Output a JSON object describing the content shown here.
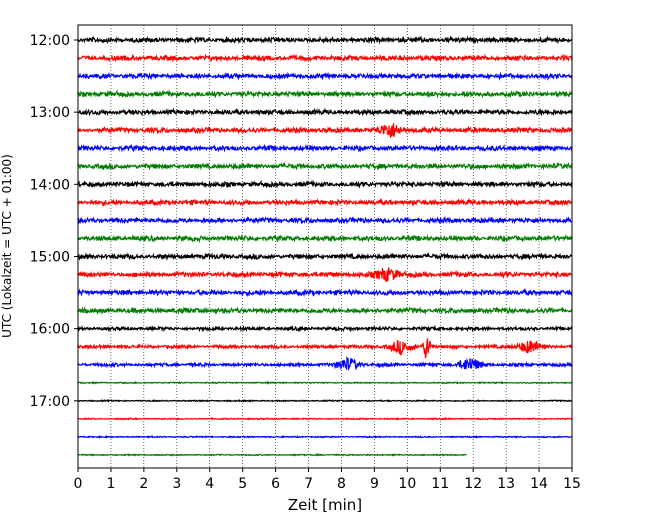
{
  "chart_data": {
    "type": "line",
    "title": "",
    "xlabel": "Zeit  [min]",
    "ylabel": "UTC (Lokalzeit = UTC + 01:00)",
    "xlim": [
      0,
      15
    ],
    "x_ticks": [
      "0",
      "1",
      "2",
      "3",
      "4",
      "5",
      "6",
      "7",
      "8",
      "9",
      "10",
      "11",
      "12",
      "13",
      "14",
      "15"
    ],
    "y_tick_labels": [
      "12:00",
      "13:00",
      "14:00",
      "15:00",
      "16:00",
      "17:00"
    ],
    "grid": "vertical dotted",
    "trace_interval_min": 15,
    "trace_colors": [
      "#000000",
      "#ff0000",
      "#0000ff",
      "#008000"
    ],
    "series": [
      {
        "start": "12:00",
        "end_min": 15,
        "color": "#000000"
      },
      {
        "start": "12:15",
        "end_min": 15,
        "color": "#ff0000"
      },
      {
        "start": "12:30",
        "end_min": 15,
        "color": "#0000ff"
      },
      {
        "start": "12:45",
        "end_min": 15,
        "color": "#008000"
      },
      {
        "start": "13:00",
        "end_min": 15,
        "color": "#000000"
      },
      {
        "start": "13:15",
        "end_min": 15,
        "color": "#ff0000"
      },
      {
        "start": "13:30",
        "end_min": 15,
        "color": "#0000ff"
      },
      {
        "start": "13:45",
        "end_min": 15,
        "color": "#008000"
      },
      {
        "start": "14:00",
        "end_min": 15,
        "color": "#000000"
      },
      {
        "start": "14:15",
        "end_min": 15,
        "color": "#ff0000"
      },
      {
        "start": "14:30",
        "end_min": 15,
        "color": "#0000ff"
      },
      {
        "start": "14:45",
        "end_min": 15,
        "color": "#008000"
      },
      {
        "start": "15:00",
        "end_min": 15,
        "color": "#000000"
      },
      {
        "start": "15:15",
        "end_min": 15,
        "color": "#ff0000"
      },
      {
        "start": "15:30",
        "end_min": 15,
        "color": "#0000ff"
      },
      {
        "start": "15:45",
        "end_min": 15,
        "color": "#008000"
      },
      {
        "start": "16:00",
        "end_min": 15,
        "color": "#000000"
      },
      {
        "start": "16:15",
        "end_min": 15,
        "color": "#ff0000"
      },
      {
        "start": "16:30",
        "end_min": 15,
        "color": "#0000ff"
      },
      {
        "start": "16:45",
        "end_min": 15,
        "color": "#008000"
      },
      {
        "start": "17:00",
        "end_min": 15,
        "color": "#000000"
      },
      {
        "start": "17:15",
        "end_min": 15,
        "color": "#ff0000"
      },
      {
        "start": "17:30",
        "end_min": 15,
        "color": "#0000ff"
      },
      {
        "start": "17:45",
        "end_min": 11.8,
        "color": "#008000"
      }
    ],
    "events": [
      {
        "series_index": 17,
        "x_min": 10.6,
        "amplitude": "large spike"
      },
      {
        "series_index": 17,
        "x_min": 9.8,
        "amplitude": "burst"
      },
      {
        "series_index": 17,
        "x_min": 13.7,
        "amplitude": "burst"
      },
      {
        "series_index": 18,
        "x_min": 8.2,
        "amplitude": "burst"
      },
      {
        "series_index": 18,
        "x_min": 11.9,
        "amplitude": "burst"
      },
      {
        "series_index": 13,
        "x_min": 9.4,
        "amplitude": "burst"
      },
      {
        "series_index": 5,
        "x_min": 9.5,
        "amplitude": "burst"
      }
    ]
  }
}
